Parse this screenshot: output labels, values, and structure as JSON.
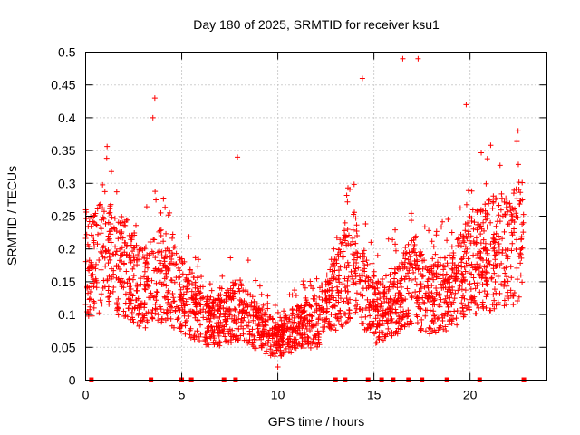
{
  "chart_data": {
    "type": "scatter",
    "title": "Day 180 of 2025, SRMTID for receiver ksu1",
    "xlabel": "GPS time / hours",
    "ylabel": "SRMTID / TECUs",
    "xlim": [
      0,
      24
    ],
    "ylim": [
      0,
      0.5
    ],
    "xticks": [
      "0",
      "5",
      "10",
      "15",
      "20"
    ],
    "xtick_values": [
      0,
      5,
      10,
      15,
      20
    ],
    "yticks": [
      "0",
      "0.05",
      "0.1",
      "0.15",
      "0.2",
      "0.25",
      "0.3",
      "0.35",
      "0.4",
      "0.45",
      "0.5"
    ],
    "ytick_values": [
      0,
      0.05,
      0.1,
      0.15,
      0.2,
      0.25,
      0.3,
      0.35,
      0.4,
      0.45,
      0.5
    ],
    "grid": true,
    "marker": "+",
    "color": "#ff0000",
    "series": [
      {
        "name": "SRMTID",
        "trend": {
          "hours": [
            0,
            1,
            2,
            3,
            4,
            5,
            6,
            7,
            8,
            9,
            10,
            11,
            12,
            13,
            14,
            15,
            16,
            17,
            18,
            19,
            20,
            21,
            22,
            22.8
          ],
          "median_tecu": [
            0.17,
            0.19,
            0.17,
            0.14,
            0.16,
            0.13,
            0.1,
            0.09,
            0.11,
            0.08,
            0.06,
            0.08,
            0.09,
            0.13,
            0.18,
            0.1,
            0.12,
            0.15,
            0.12,
            0.14,
            0.18,
            0.19,
            0.2,
            0.22
          ]
        },
        "notable_points": [
          {
            "x": 3.6,
            "y": 0.43
          },
          {
            "x": 3.5,
            "y": 0.4
          },
          {
            "x": 7.9,
            "y": 0.34
          },
          {
            "x": 14.4,
            "y": 0.46
          },
          {
            "x": 16.5,
            "y": 0.49
          },
          {
            "x": 17.3,
            "y": 0.49
          },
          {
            "x": 19.8,
            "y": 0.42
          },
          {
            "x": 22.5,
            "y": 0.38
          },
          {
            "x": 10.0,
            "y": 0.02
          }
        ]
      }
    ],
    "zero_markers_hours": [
      0.3,
      3.4,
      5.0,
      5.5,
      7.2,
      7.8,
      13.0,
      13.5,
      14.7,
      15.4,
      16.0,
      16.8,
      17.5,
      18.8,
      20.5,
      22.8
    ]
  }
}
